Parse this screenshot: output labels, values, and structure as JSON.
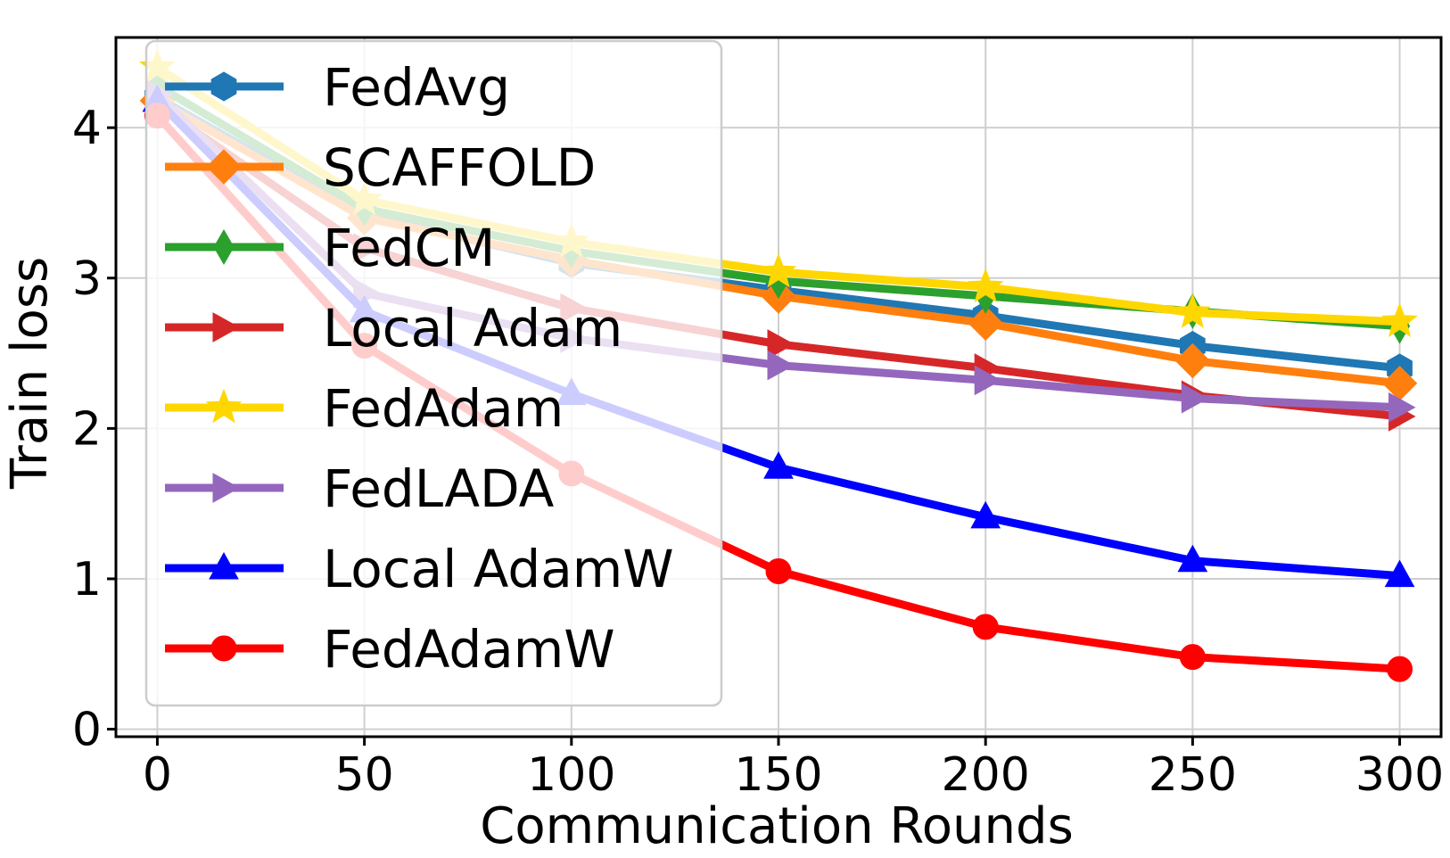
{
  "chart_data": {
    "type": "line",
    "title": "",
    "xlabel": "Communication Rounds",
    "ylabel": "Train loss",
    "xlim": [
      -10,
      310
    ],
    "ylim": [
      -0.05,
      4.6
    ],
    "x_ticks": [
      0,
      50,
      100,
      150,
      200,
      250,
      300
    ],
    "y_ticks": [
      0,
      1,
      2,
      3,
      4
    ],
    "grid": true,
    "legend_position": "top-left",
    "x": [
      0,
      50,
      100,
      150,
      200,
      250,
      300
    ],
    "series": [
      {
        "name": "FedAvg",
        "color": "#1f77b4",
        "marker": "hexagon",
        "values": [
          4.2,
          3.42,
          3.1,
          2.92,
          2.75,
          2.55,
          2.4
        ]
      },
      {
        "name": "SCAFFOLD",
        "color": "#ff7f0e",
        "marker": "diamond",
        "values": [
          4.18,
          3.4,
          3.12,
          2.88,
          2.7,
          2.45,
          2.3
        ]
      },
      {
        "name": "FedCM",
        "color": "#2ca02c",
        "marker": "thin-diamond",
        "values": [
          4.28,
          3.46,
          3.18,
          2.98,
          2.88,
          2.78,
          2.68
        ]
      },
      {
        "name": "Local Adam",
        "color": "#d62728",
        "marker": "triangle-right",
        "values": [
          4.15,
          3.2,
          2.8,
          2.56,
          2.4,
          2.22,
          2.08
        ]
      },
      {
        "name": "FedAdam",
        "color": "#ffd700",
        "marker": "star",
        "values": [
          4.4,
          3.52,
          3.24,
          3.04,
          2.94,
          2.77,
          2.71
        ]
      },
      {
        "name": "FedLADA",
        "color": "#9467bd",
        "marker": "triangle-right",
        "values": [
          4.22,
          2.9,
          2.6,
          2.42,
          2.32,
          2.2,
          2.14
        ]
      },
      {
        "name": "Local AdamW",
        "color": "#0000ff",
        "marker": "triangle-up",
        "values": [
          4.18,
          2.78,
          2.23,
          1.74,
          1.41,
          1.12,
          1.02
        ]
      },
      {
        "name": "FedAdamW",
        "color": "#ff0000",
        "marker": "circle",
        "values": [
          4.08,
          2.55,
          1.7,
          1.05,
          0.68,
          0.48,
          0.4
        ]
      }
    ]
  }
}
